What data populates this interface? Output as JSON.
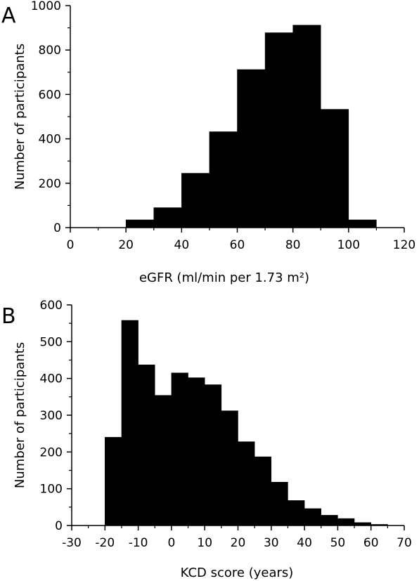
{
  "chart_data": [
    {
      "panel_label": "A",
      "type": "bar",
      "subtype": "histogram",
      "xlabel": "eGFR (ml/min per 1.73 m²)",
      "ylabel": "Number of participants",
      "xlim": [
        0,
        120
      ],
      "ylim": [
        0,
        1000
      ],
      "xticks": [
        0,
        20,
        40,
        60,
        80,
        100,
        120
      ],
      "yticks": [
        0,
        200,
        400,
        600,
        800,
        1000
      ],
      "xticks_minor": [
        10,
        30,
        50,
        70,
        90,
        110
      ],
      "yticks_minor": [
        100,
        300,
        500,
        700,
        900
      ],
      "bin_width": 10,
      "bins": [
        {
          "x0": 20,
          "x1": 30,
          "value": 35
        },
        {
          "x0": 30,
          "x1": 40,
          "value": 90
        },
        {
          "x0": 40,
          "x1": 50,
          "value": 245
        },
        {
          "x0": 50,
          "x1": 60,
          "value": 432
        },
        {
          "x0": 60,
          "x1": 70,
          "value": 712
        },
        {
          "x0": 70,
          "x1": 80,
          "value": 878
        },
        {
          "x0": 80,
          "x1": 90,
          "value": 912
        },
        {
          "x0": 90,
          "x1": 100,
          "value": 533
        },
        {
          "x0": 100,
          "x1": 110,
          "value": 35
        }
      ],
      "bar_color": "#000000",
      "grid": false
    },
    {
      "panel_label": "B",
      "type": "bar",
      "subtype": "histogram",
      "xlabel": "KCD score (years)",
      "ylabel": "Number of participants",
      "xlim": [
        -30,
        70
      ],
      "ylim": [
        0,
        600
      ],
      "xticks": [
        -30,
        -20,
        -10,
        0,
        10,
        20,
        30,
        40,
        50,
        60,
        70
      ],
      "yticks": [
        0,
        100,
        200,
        300,
        400,
        500,
        600
      ],
      "xticks_minor": [
        -25,
        -15,
        -5,
        5,
        15,
        25,
        35,
        45,
        55,
        65
      ],
      "yticks_minor": [
        50,
        150,
        250,
        350,
        450,
        550
      ],
      "bin_width": 5,
      "bins": [
        {
          "x0": -20,
          "x1": -15,
          "value": 240
        },
        {
          "x0": -15,
          "x1": -10,
          "value": 558
        },
        {
          "x0": -10,
          "x1": -5,
          "value": 437
        },
        {
          "x0": -5,
          "x1": 0,
          "value": 354
        },
        {
          "x0": 0,
          "x1": 5,
          "value": 415
        },
        {
          "x0": 5,
          "x1": 10,
          "value": 402
        },
        {
          "x0": 10,
          "x1": 15,
          "value": 383
        },
        {
          "x0": 15,
          "x1": 20,
          "value": 312
        },
        {
          "x0": 20,
          "x1": 25,
          "value": 228
        },
        {
          "x0": 25,
          "x1": 30,
          "value": 187
        },
        {
          "x0": 30,
          "x1": 35,
          "value": 118
        },
        {
          "x0": 35,
          "x1": 40,
          "value": 68
        },
        {
          "x0": 40,
          "x1": 45,
          "value": 46
        },
        {
          "x0": 45,
          "x1": 50,
          "value": 28
        },
        {
          "x0": 50,
          "x1": 55,
          "value": 19
        },
        {
          "x0": 55,
          "x1": 60,
          "value": 8
        },
        {
          "x0": 60,
          "x1": 65,
          "value": 3
        }
      ],
      "bar_color": "#000000",
      "grid": false
    }
  ]
}
